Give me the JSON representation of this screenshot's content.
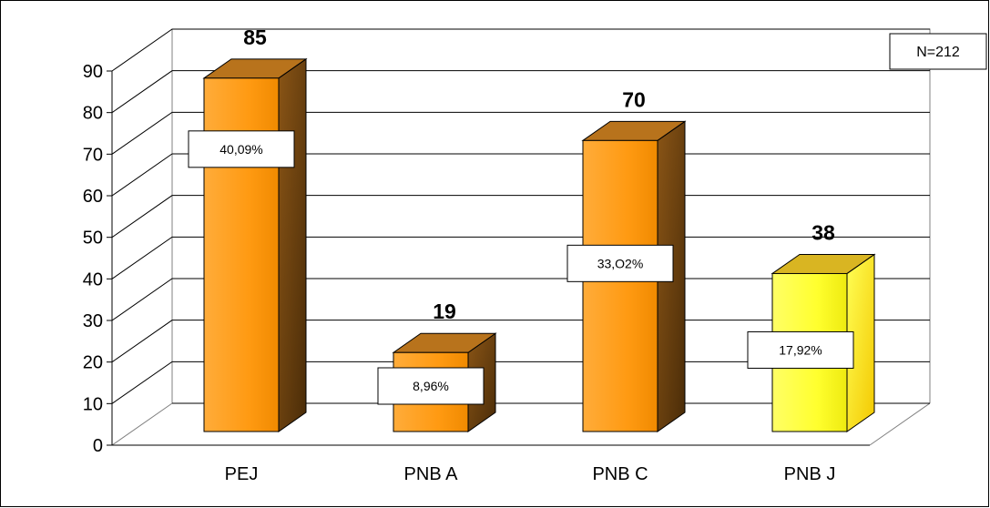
{
  "chart_data": {
    "type": "bar",
    "categories": [
      "PEJ",
      "PNB A",
      "PNB C",
      "PNB J"
    ],
    "values": [
      85,
      19,
      70,
      38
    ],
    "percent_labels": [
      "40,09%",
      "8,96%",
      "33,O2%",
      "17,92%"
    ],
    "ylim": [
      0,
      90
    ],
    "yticks": [
      0,
      10,
      20,
      30,
      40,
      50,
      60,
      70,
      80,
      90
    ],
    "grid": true,
    "style": "3d-column",
    "annotation": "N=212",
    "colors": {
      "bar": "#ff9900",
      "bar_highlight": "#ffff33",
      "bar_side": "#6b4112",
      "bar_top": "#b8731c",
      "highlight_index": 3
    }
  }
}
